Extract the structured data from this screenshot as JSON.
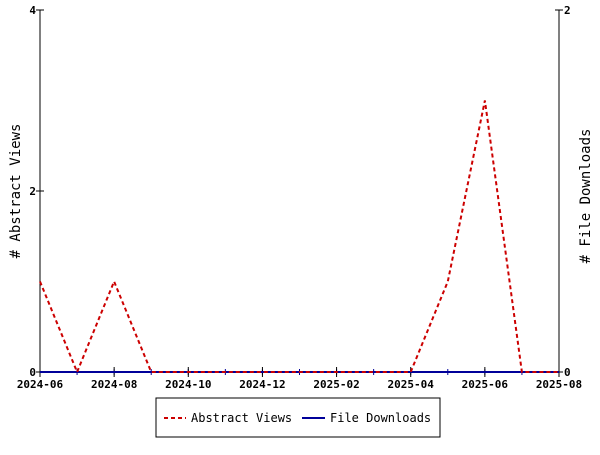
{
  "chart_data": {
    "type": "line",
    "x": [
      "2024-06",
      "2024-07",
      "2024-08",
      "2024-09",
      "2024-10",
      "2024-11",
      "2024-12",
      "2025-01",
      "2025-02",
      "2025-03",
      "2025-04",
      "2025-05",
      "2025-06",
      "2025-07",
      "2025-08"
    ],
    "x_tick_labels": [
      "2024-06",
      "2024-08",
      "2024-10",
      "2024-12",
      "2025-02",
      "2025-04",
      "2025-06",
      "2025-08"
    ],
    "xlim": [
      "2024-06",
      "2025-08"
    ],
    "series": [
      {
        "name": "Abstract Views",
        "axis": "left",
        "color": "#cc0000",
        "dash": "dashed",
        "values": [
          1,
          0,
          1,
          0,
          0,
          0,
          0,
          0,
          0,
          0,
          0,
          1,
          3,
          0,
          0
        ]
      },
      {
        "name": "File Downloads",
        "axis": "right",
        "color": "#000099",
        "dash": "solid",
        "values": [
          0,
          0,
          0,
          0,
          0,
          0,
          0,
          0,
          0,
          0,
          0,
          0,
          0,
          0,
          0
        ]
      }
    ],
    "ylabel_left": "# Abstract Views",
    "ylabel_right": "# File Downloads",
    "ylim_left": [
      0,
      4
    ],
    "ylim_right": [
      0,
      2
    ],
    "y_left_ticks": [
      "0",
      "2",
      "4"
    ],
    "y_right_ticks": [
      "0",
      "2"
    ],
    "grid": false,
    "legend": "bottom-center"
  }
}
